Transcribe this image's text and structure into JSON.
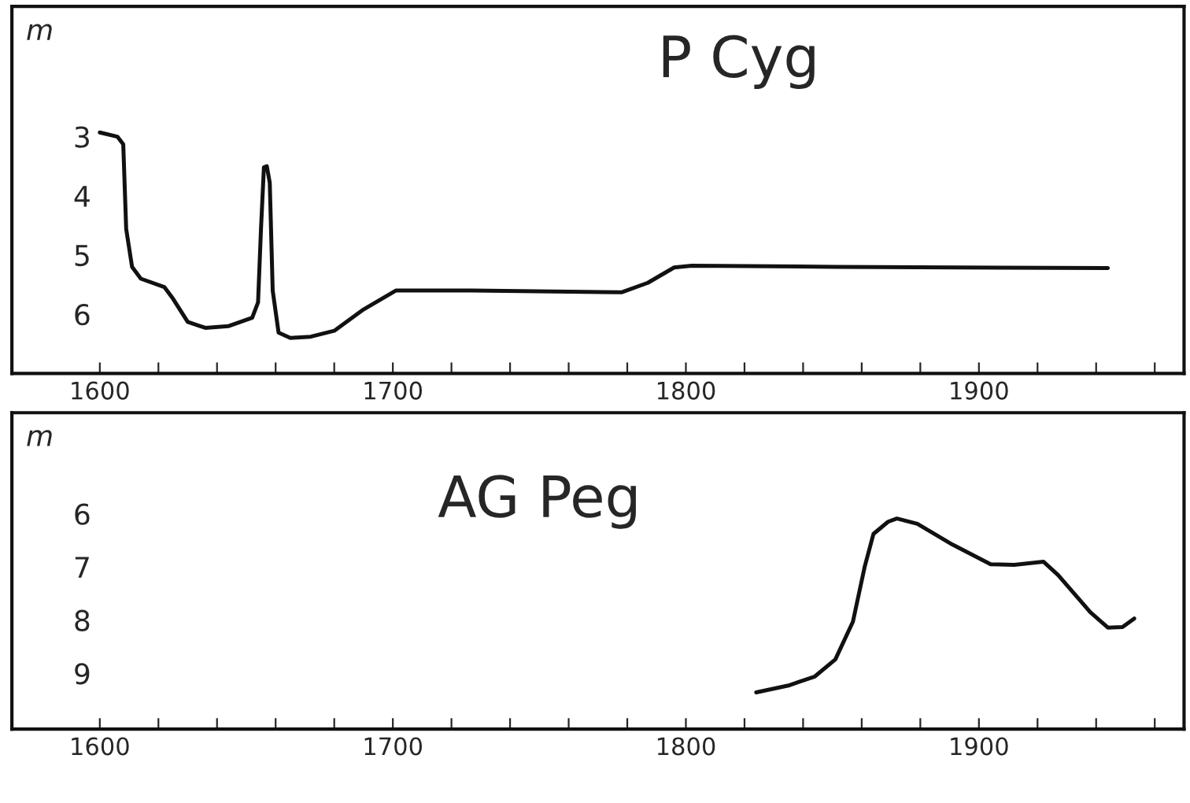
{
  "chart_data": [
    {
      "type": "line",
      "title": "P Cyg",
      "ylabel": "m",
      "xlim": [
        1570,
        1970
      ],
      "ylim": [
        7.0,
        0.8
      ],
      "xticks": [
        1600,
        {
          "value": 1620,
          "label": null
        },
        {
          "value": 1640,
          "label": null
        },
        {
          "value": 1660,
          "label": null
        },
        {
          "value": 1680,
          "label": null
        },
        1700,
        {
          "value": 1720,
          "label": null
        },
        {
          "value": 1740,
          "label": null
        },
        {
          "value": 1760,
          "label": null
        },
        {
          "value": 1780,
          "label": null
        },
        1800,
        {
          "value": 1820,
          "label": null
        },
        {
          "value": 1840,
          "label": null
        },
        {
          "value": 1860,
          "label": null
        },
        {
          "value": 1880,
          "label": null
        },
        1900,
        {
          "value": 1920,
          "label": null
        },
        {
          "value": 1940,
          "label": null
        },
        {
          "value": 1960,
          "label": null
        }
      ],
      "yticks": [
        3,
        4,
        5,
        6
      ],
      "grid": false,
      "legend": false,
      "series": [
        {
          "color": "#111111",
          "x": [
            1600,
            1606,
            1608,
            1609,
            1611,
            1614,
            1622,
            1625,
            1630,
            1636,
            1644,
            1652,
            1654,
            1655,
            1656,
            1657,
            1658,
            1659,
            1661,
            1665,
            1672,
            1680,
            1690,
            1701,
            1727,
            1778,
            1787,
            1796,
            1802,
            1851,
            1944
          ],
          "values": [
            2.93,
            3.0,
            3.13,
            4.56,
            5.2,
            5.4,
            5.54,
            5.74,
            6.13,
            6.23,
            6.2,
            6.06,
            5.8,
            4.56,
            3.52,
            3.5,
            3.78,
            5.6,
            6.31,
            6.4,
            6.38,
            6.28,
            5.92,
            5.6,
            5.6,
            5.63,
            5.47,
            5.21,
            5.18,
            5.2,
            5.22
          ]
        }
      ]
    },
    {
      "type": "line",
      "title": "AG Peg",
      "ylabel": "m",
      "xlim": [
        1570,
        1970
      ],
      "ylim": [
        10.05,
        4.1
      ],
      "xticks": [
        1600,
        {
          "value": 1620,
          "label": null
        },
        {
          "value": 1640,
          "label": null
        },
        {
          "value": 1660,
          "label": null
        },
        {
          "value": 1680,
          "label": null
        },
        1700,
        {
          "value": 1720,
          "label": null
        },
        {
          "value": 1740,
          "label": null
        },
        {
          "value": 1760,
          "label": null
        },
        {
          "value": 1780,
          "label": null
        },
        1800,
        {
          "value": 1820,
          "label": null
        },
        {
          "value": 1840,
          "label": null
        },
        {
          "value": 1860,
          "label": null
        },
        {
          "value": 1880,
          "label": null
        },
        1900,
        {
          "value": 1920,
          "label": null
        },
        {
          "value": 1940,
          "label": null
        },
        {
          "value": 1960,
          "label": null
        }
      ],
      "yticks": [
        6,
        7,
        8,
        9
      ],
      "grid": false,
      "legend": false,
      "series": [
        {
          "color": "#111111",
          "x": [
            1824,
            1835,
            1844,
            1851,
            1857,
            1861,
            1864,
            1869,
            1872,
            1879,
            1891,
            1904,
            1912,
            1922,
            1927,
            1938,
            1944,
            1949,
            1953
          ],
          "values": [
            9.36,
            9.23,
            9.06,
            8.74,
            8.03,
            7.0,
            6.38,
            6.15,
            6.09,
            6.19,
            6.58,
            6.95,
            6.96,
            6.9,
            7.15,
            7.85,
            8.14,
            8.13,
            7.97
          ]
        }
      ]
    }
  ]
}
